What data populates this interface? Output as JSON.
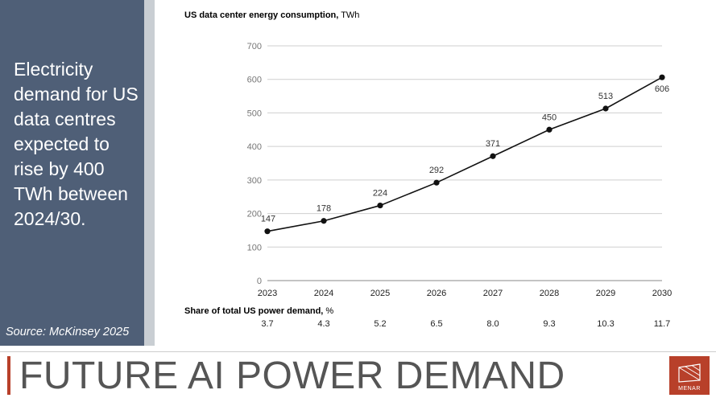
{
  "headline": "Electricity demand for US data centres expected to rise by 400 TWh between 2024/30.",
  "source": "Source: McKinsey 2025",
  "chart_data": {
    "type": "line",
    "title_bold": "US data center energy consumption,",
    "title_unit": "TWh",
    "categories": [
      "2023",
      "2024",
      "2025",
      "2026",
      "2027",
      "2028",
      "2029",
      "2030"
    ],
    "values": [
      147,
      178,
      224,
      292,
      371,
      450,
      513,
      606
    ],
    "y_ticks": [
      0,
      100,
      200,
      300,
      400,
      500,
      600,
      700
    ],
    "ylim": [
      0,
      700
    ],
    "grid": true,
    "line_color": "#111111"
  },
  "share_table": {
    "label_bold": "Share of total US power demand,",
    "label_unit": "%",
    "values": [
      "3.7",
      "4.3",
      "5.2",
      "6.5",
      "8.0",
      "9.3",
      "10.3",
      "11.7"
    ]
  },
  "footer_title": "FUTURE AI POWER DEMAND",
  "logo_text": "MENAR",
  "colors": {
    "side_panel": "#4f5f77",
    "side_strip": "#c9ced3",
    "accent": "#b8402a"
  }
}
